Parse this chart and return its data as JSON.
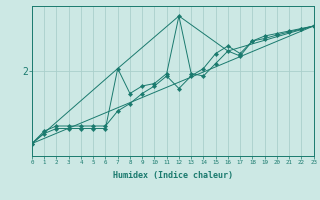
{
  "xlabel": "Humidex (Indice chaleur)",
  "background_color": "#cce8e4",
  "line_color": "#1a7a6e",
  "grid_color": "#aacfcb",
  "xlim": [
    0,
    23
  ],
  "ylim": [
    0.3,
    3.3
  ],
  "ytick_val": 2.0,
  "line1_x": [
    0,
    1,
    2,
    3,
    4,
    5,
    6,
    7,
    8,
    9,
    10,
    11,
    12,
    13,
    14,
    15,
    16,
    17,
    18,
    19,
    20,
    21,
    22,
    23
  ],
  "line1_y": [
    0.55,
    0.8,
    0.9,
    0.9,
    0.9,
    0.9,
    0.9,
    1.2,
    1.35,
    1.55,
    1.7,
    1.9,
    1.65,
    1.9,
    2.05,
    2.35,
    2.5,
    2.35,
    2.6,
    2.7,
    2.75,
    2.8,
    2.85,
    2.9
  ],
  "line2_x": [
    0,
    1,
    2,
    3,
    4,
    5,
    6,
    7,
    8,
    9,
    10,
    11,
    12,
    13,
    14,
    15,
    16,
    17,
    18,
    19,
    20,
    21,
    22,
    23
  ],
  "line2_y": [
    0.55,
    0.75,
    0.85,
    0.85,
    0.85,
    0.85,
    0.85,
    2.05,
    1.55,
    1.7,
    1.75,
    1.95,
    3.1,
    1.95,
    1.9,
    2.15,
    2.4,
    2.3,
    2.6,
    2.65,
    2.72,
    2.78,
    2.84,
    2.9
  ],
  "line3_x": [
    0,
    23
  ],
  "line3_y": [
    0.55,
    2.9
  ],
  "line4_x": [
    0,
    7,
    12,
    16,
    23
  ],
  "line4_y": [
    0.55,
    2.05,
    3.1,
    2.4,
    2.9
  ]
}
